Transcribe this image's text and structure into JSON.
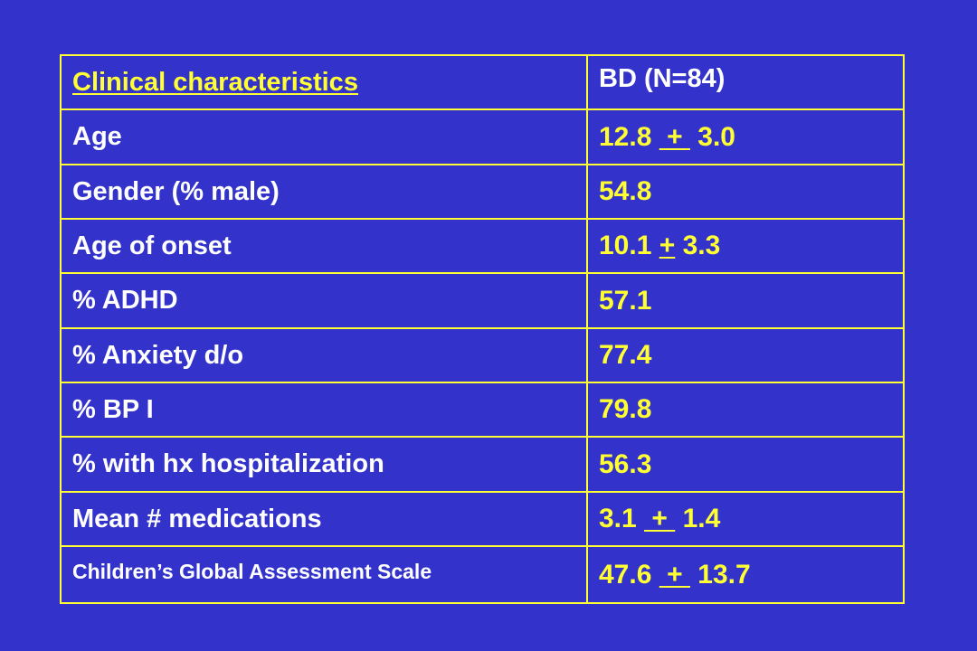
{
  "table": {
    "header": {
      "label": "Clinical characteristics",
      "value": "BD (N=84)"
    },
    "rows": [
      {
        "label": "Age",
        "value": "12.8  +  3.0",
        "a": "12.8 ",
        "pm": " + ",
        "b": " 3.0"
      },
      {
        "label": "Gender (% male)",
        "value": "54.8"
      },
      {
        "label": "Age of onset",
        "value": "10.1 + 3.3",
        "a": "10.1 ",
        "pm": "+",
        "b": " 3.3"
      },
      {
        "label": "% ADHD",
        "value": "57.1"
      },
      {
        "label": "% Anxiety d/o",
        "value": "77.4"
      },
      {
        "label": "% BP I",
        "value": "79.8"
      },
      {
        "label": "% with hx hospitalization",
        "value": "56.3"
      },
      {
        "label": "Mean # medications",
        "value": "3.1  +  1.4",
        "a": "3.1 ",
        "pm": " + ",
        "b": " 1.4"
      },
      {
        "label": "Children’s Global Assessment Scale",
        "value": "47.6  +  13.7",
        "a": "47.6 ",
        "pm": " + ",
        "b": " 13.7"
      }
    ]
  },
  "colors": {
    "background": "#3333CC",
    "accent": "#FFFF33",
    "text": "#FFFFFF"
  }
}
